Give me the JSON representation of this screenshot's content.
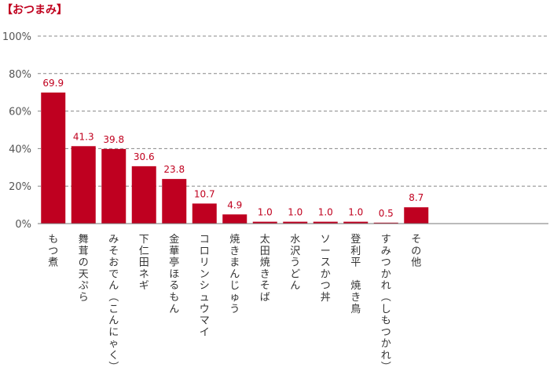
{
  "chart_data": {
    "type": "bar",
    "title": "【おつまみ】",
    "categories": [
      "もつ煮",
      "舞茸の天ぷら",
      "みそおでん（こんにゃく）",
      "下仁田ネギ",
      "金華亭ほるもん",
      "コロリンシュウマイ",
      "焼きまんじゅう",
      "太田焼きそば",
      "水沢うどん",
      "ソースかつ丼",
      "登利平 焼き鳥",
      "すみつかれ（しもつかれ）",
      "その他"
    ],
    "values": [
      69.9,
      41.3,
      39.8,
      30.6,
      23.8,
      10.7,
      4.9,
      1.0,
      1.0,
      1.0,
      1.0,
      0.5,
      8.7
    ],
    "value_labels": [
      "69.9",
      "41.3",
      "39.8",
      "30.6",
      "23.8",
      "10.7",
      "4.9",
      "1.0",
      "1.0",
      "1.0",
      "1.0",
      "0.5",
      "8.7"
    ],
    "ylim": [
      0,
      100
    ],
    "yticks": [
      0,
      20,
      40,
      60,
      80,
      100
    ],
    "ytick_labels": [
      "0%",
      "20%",
      "40%",
      "60%",
      "80%",
      "100%"
    ],
    "xlabel": "",
    "ylabel": "",
    "grid": true,
    "bar_color": "#bf0020",
    "label_color": "#c0001e"
  }
}
